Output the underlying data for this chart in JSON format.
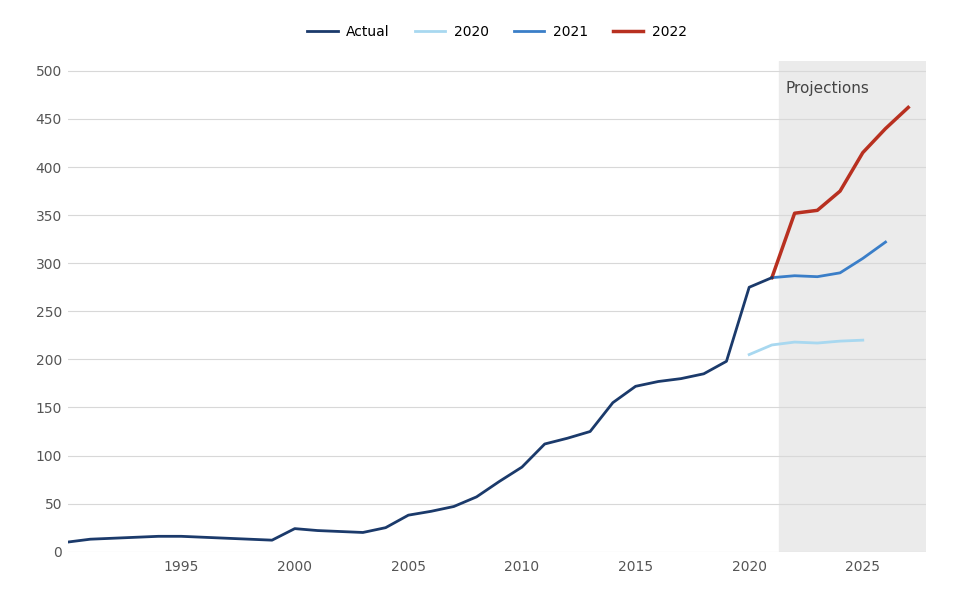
{
  "actual_x": [
    1990,
    1991,
    1992,
    1993,
    1994,
    1995,
    1996,
    1997,
    1998,
    1999,
    2000,
    2001,
    2002,
    2003,
    2004,
    2005,
    2006,
    2007,
    2008,
    2009,
    2010,
    2011,
    2012,
    2013,
    2014,
    2015,
    2016,
    2017,
    2018,
    2019,
    2020,
    2021
  ],
  "actual_y": [
    10,
    13,
    14,
    15,
    16,
    16,
    15,
    14,
    13,
    12,
    24,
    22,
    21,
    20,
    25,
    38,
    42,
    47,
    57,
    73,
    88,
    112,
    118,
    125,
    155,
    172,
    177,
    180,
    185,
    198,
    275,
    285
  ],
  "proj_2020_x": [
    2020,
    2021,
    2022,
    2023,
    2024,
    2025
  ],
  "proj_2020_y": [
    205,
    215,
    218,
    217,
    219,
    220
  ],
  "proj_2021_x": [
    2021,
    2022,
    2023,
    2024,
    2025,
    2026
  ],
  "proj_2021_y": [
    285,
    287,
    286,
    290,
    305,
    322
  ],
  "proj_2022_x": [
    2021,
    2022,
    2023,
    2024,
    2025,
    2026,
    2027
  ],
  "proj_2022_y": [
    285,
    352,
    355,
    375,
    415,
    440,
    462
  ],
  "projection_start": 2021.3,
  "xlim": [
    1990,
    2027.8
  ],
  "ylim": [
    0,
    510
  ],
  "yticks": [
    0,
    50,
    100,
    150,
    200,
    250,
    300,
    350,
    400,
    450,
    500
  ],
  "xticks": [
    1995,
    2000,
    2005,
    2010,
    2015,
    2020,
    2025
  ],
  "color_actual": "#1b3a6b",
  "color_2020": "#a8d8f0",
  "color_2021": "#3a7ec8",
  "color_2022": "#b83020",
  "projection_bg": "#ebebeb",
  "bg_color": "#ffffff",
  "projection_label": "Projections",
  "legend_labels": [
    "Actual",
    "2020",
    "2021",
    "2022"
  ],
  "tick_color": "#555555",
  "grid_color": "#d8d8d8",
  "title_fontsize": 11,
  "axis_fontsize": 10,
  "legend_fontsize": 10,
  "linewidth_actual": 2.0,
  "linewidth_proj": 2.0,
  "linewidth_2022": 2.5
}
